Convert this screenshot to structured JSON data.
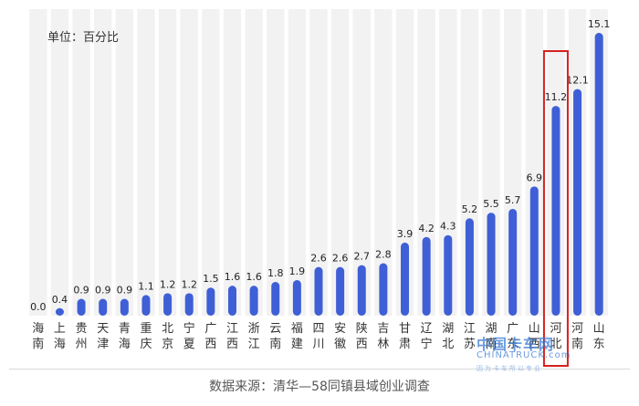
{
  "header": {
    "unit_label": "单位：百分比"
  },
  "footer": {
    "source": "数据来源：清华—58同镇县域创业调查"
  },
  "watermark": {
    "logo_text": "中国卡车网",
    "en_text": "CHINATRUCK.com",
    "sub_text": "因为卡车所以专业"
  },
  "colors": {
    "bar": "#3f5fd6",
    "column_bg": "#f2f2f2",
    "highlight": "#d62020",
    "label": "#222222"
  },
  "highlight_category_index": 24,
  "chart_data": {
    "type": "bar",
    "title": "",
    "ylabel": "单位：百分比",
    "xlabel": "",
    "ylim": [
      0,
      15.1
    ],
    "grid": false,
    "categories": [
      "海南",
      "上海",
      "贵州",
      "天津",
      "青海",
      "重庆",
      "北京",
      "宁夏",
      "广西",
      "江西",
      "浙江",
      "云南",
      "福建",
      "四川",
      "安徽",
      "陕西",
      "吉林",
      "甘肃",
      "辽宁",
      "湖北",
      "江苏",
      "湖南",
      "广东",
      "山西",
      "河北",
      "河南",
      "山东"
    ],
    "values": [
      0.0,
      0.4,
      0.9,
      0.9,
      0.9,
      1.1,
      1.2,
      1.2,
      1.5,
      1.6,
      1.6,
      1.8,
      1.9,
      2.6,
      2.6,
      2.7,
      2.8,
      3.9,
      4.2,
      4.3,
      5.2,
      5.5,
      5.7,
      6.9,
      11.2,
      12.1,
      15.1
    ],
    "value_labels": [
      "0.0",
      "0.4",
      "0.9",
      "0.9",
      "0.9",
      "1.1",
      "1.2",
      "1.2",
      "1.5",
      "1.6",
      "1.6",
      "1.8",
      "1.9",
      "2.6",
      "2.6",
      "2.7",
      "2.8",
      "3.9",
      "4.2",
      "4.3",
      "5.2",
      "5.5",
      "5.7",
      "6.9",
      "11.2",
      "12.1",
      "15.1"
    ]
  }
}
